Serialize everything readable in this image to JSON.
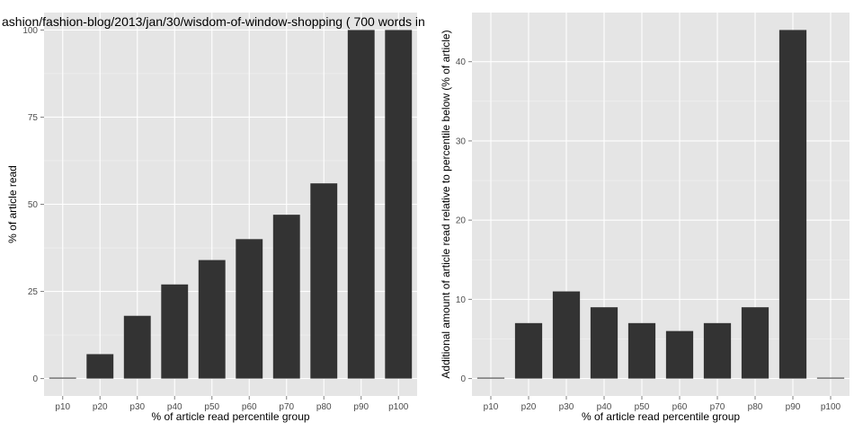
{
  "figure": {
    "title": "ashion/fashion-blog/2013/jan/30/wisdom-of-window-shopping ( 700 words in"
  },
  "colors": {
    "panel_background": "#e5e5e5",
    "grid_major": "#ffffff",
    "grid_minor": "#f2f2f2",
    "bar_fill": "#333333",
    "tick_text": "#4d4d4d",
    "text": "#000000"
  },
  "chart_data": [
    {
      "type": "bar",
      "title": "ashion/fashion-blog/2013/jan/30/wisdom-of-window-shopping ( 700 words in",
      "categories": [
        "p10",
        "p20",
        "p30",
        "p40",
        "p50",
        "p60",
        "p70",
        "p80",
        "p90",
        "p100"
      ],
      "values": [
        0,
        7,
        18,
        27,
        34,
        40,
        47,
        56,
        100,
        100
      ],
      "xlabel": "% of article read percentile group",
      "ylabel": "% of article read",
      "ylim": [
        -5,
        105
      ],
      "yticks": [
        0,
        25,
        50,
        75,
        100
      ],
      "grid": true,
      "legend": "none"
    },
    {
      "type": "bar",
      "title": "",
      "categories": [
        "p10",
        "p20",
        "p30",
        "p40",
        "p50",
        "p60",
        "p70",
        "p80",
        "p90",
        "p100"
      ],
      "values": [
        0,
        7,
        11,
        9,
        7,
        6,
        7,
        9,
        44,
        0
      ],
      "xlabel": "% of article read percentile group",
      "ylabel": "Additional amount of article read relative to percentile below (% of article)",
      "ylim": [
        -2.2,
        46.2
      ],
      "yticks": [
        0,
        10,
        20,
        30,
        40
      ],
      "grid": true,
      "legend": "none"
    }
  ]
}
